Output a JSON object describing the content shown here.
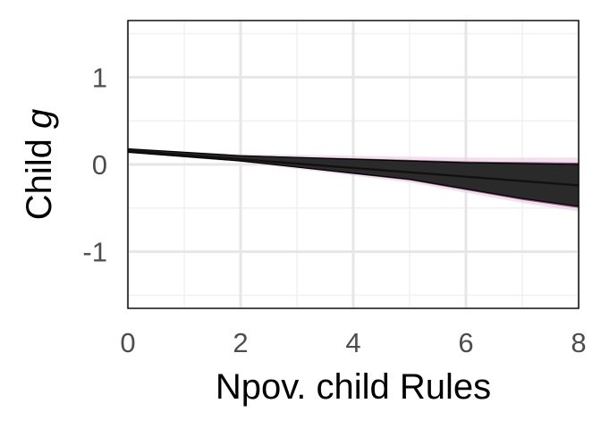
{
  "chart_data": {
    "type": "area",
    "title": "",
    "xlabel": "Npov. child Rules",
    "ylabel": {
      "text": "Child ",
      "italic": "g"
    },
    "xlim": [
      0,
      8
    ],
    "ylim": [
      -1.65,
      1.65
    ],
    "x_ticks": [
      0,
      2,
      4,
      6,
      8
    ],
    "x_tick_labels": [
      "0",
      "2",
      "4",
      "6",
      "8"
    ],
    "y_ticks": [
      -1,
      0,
      1
    ],
    "y_tick_labels": [
      "-1",
      "0",
      "1"
    ],
    "grid": true,
    "legend": "none",
    "series": [
      {
        "role": "fitted-line",
        "x": [
          0,
          1,
          2,
          3,
          4,
          5,
          6,
          7,
          8
        ],
        "y": [
          0.16,
          0.11,
          0.06,
          0.01,
          -0.04,
          -0.09,
          -0.14,
          -0.19,
          -0.24
        ]
      },
      {
        "role": "band-upper",
        "x": [
          0,
          1,
          2,
          3,
          4,
          5,
          6,
          7,
          8
        ],
        "y": [
          0.18,
          0.14,
          0.1,
          0.08,
          0.06,
          0.04,
          0.02,
          0.01,
          0.0
        ]
      },
      {
        "role": "band-lower",
        "x": [
          0,
          1,
          2,
          3,
          4,
          5,
          6,
          7,
          8
        ],
        "y": [
          0.14,
          0.09,
          0.04,
          -0.03,
          -0.1,
          -0.17,
          -0.28,
          -0.39,
          -0.48
        ]
      }
    ],
    "colors": {
      "band": "#2a2a2a",
      "band_outer": "#7a3a6e",
      "halo": "#e8c9dc",
      "grid_major": "#e6e6e6",
      "grid_minor": "#f1f1f1",
      "border": "#000000"
    }
  }
}
